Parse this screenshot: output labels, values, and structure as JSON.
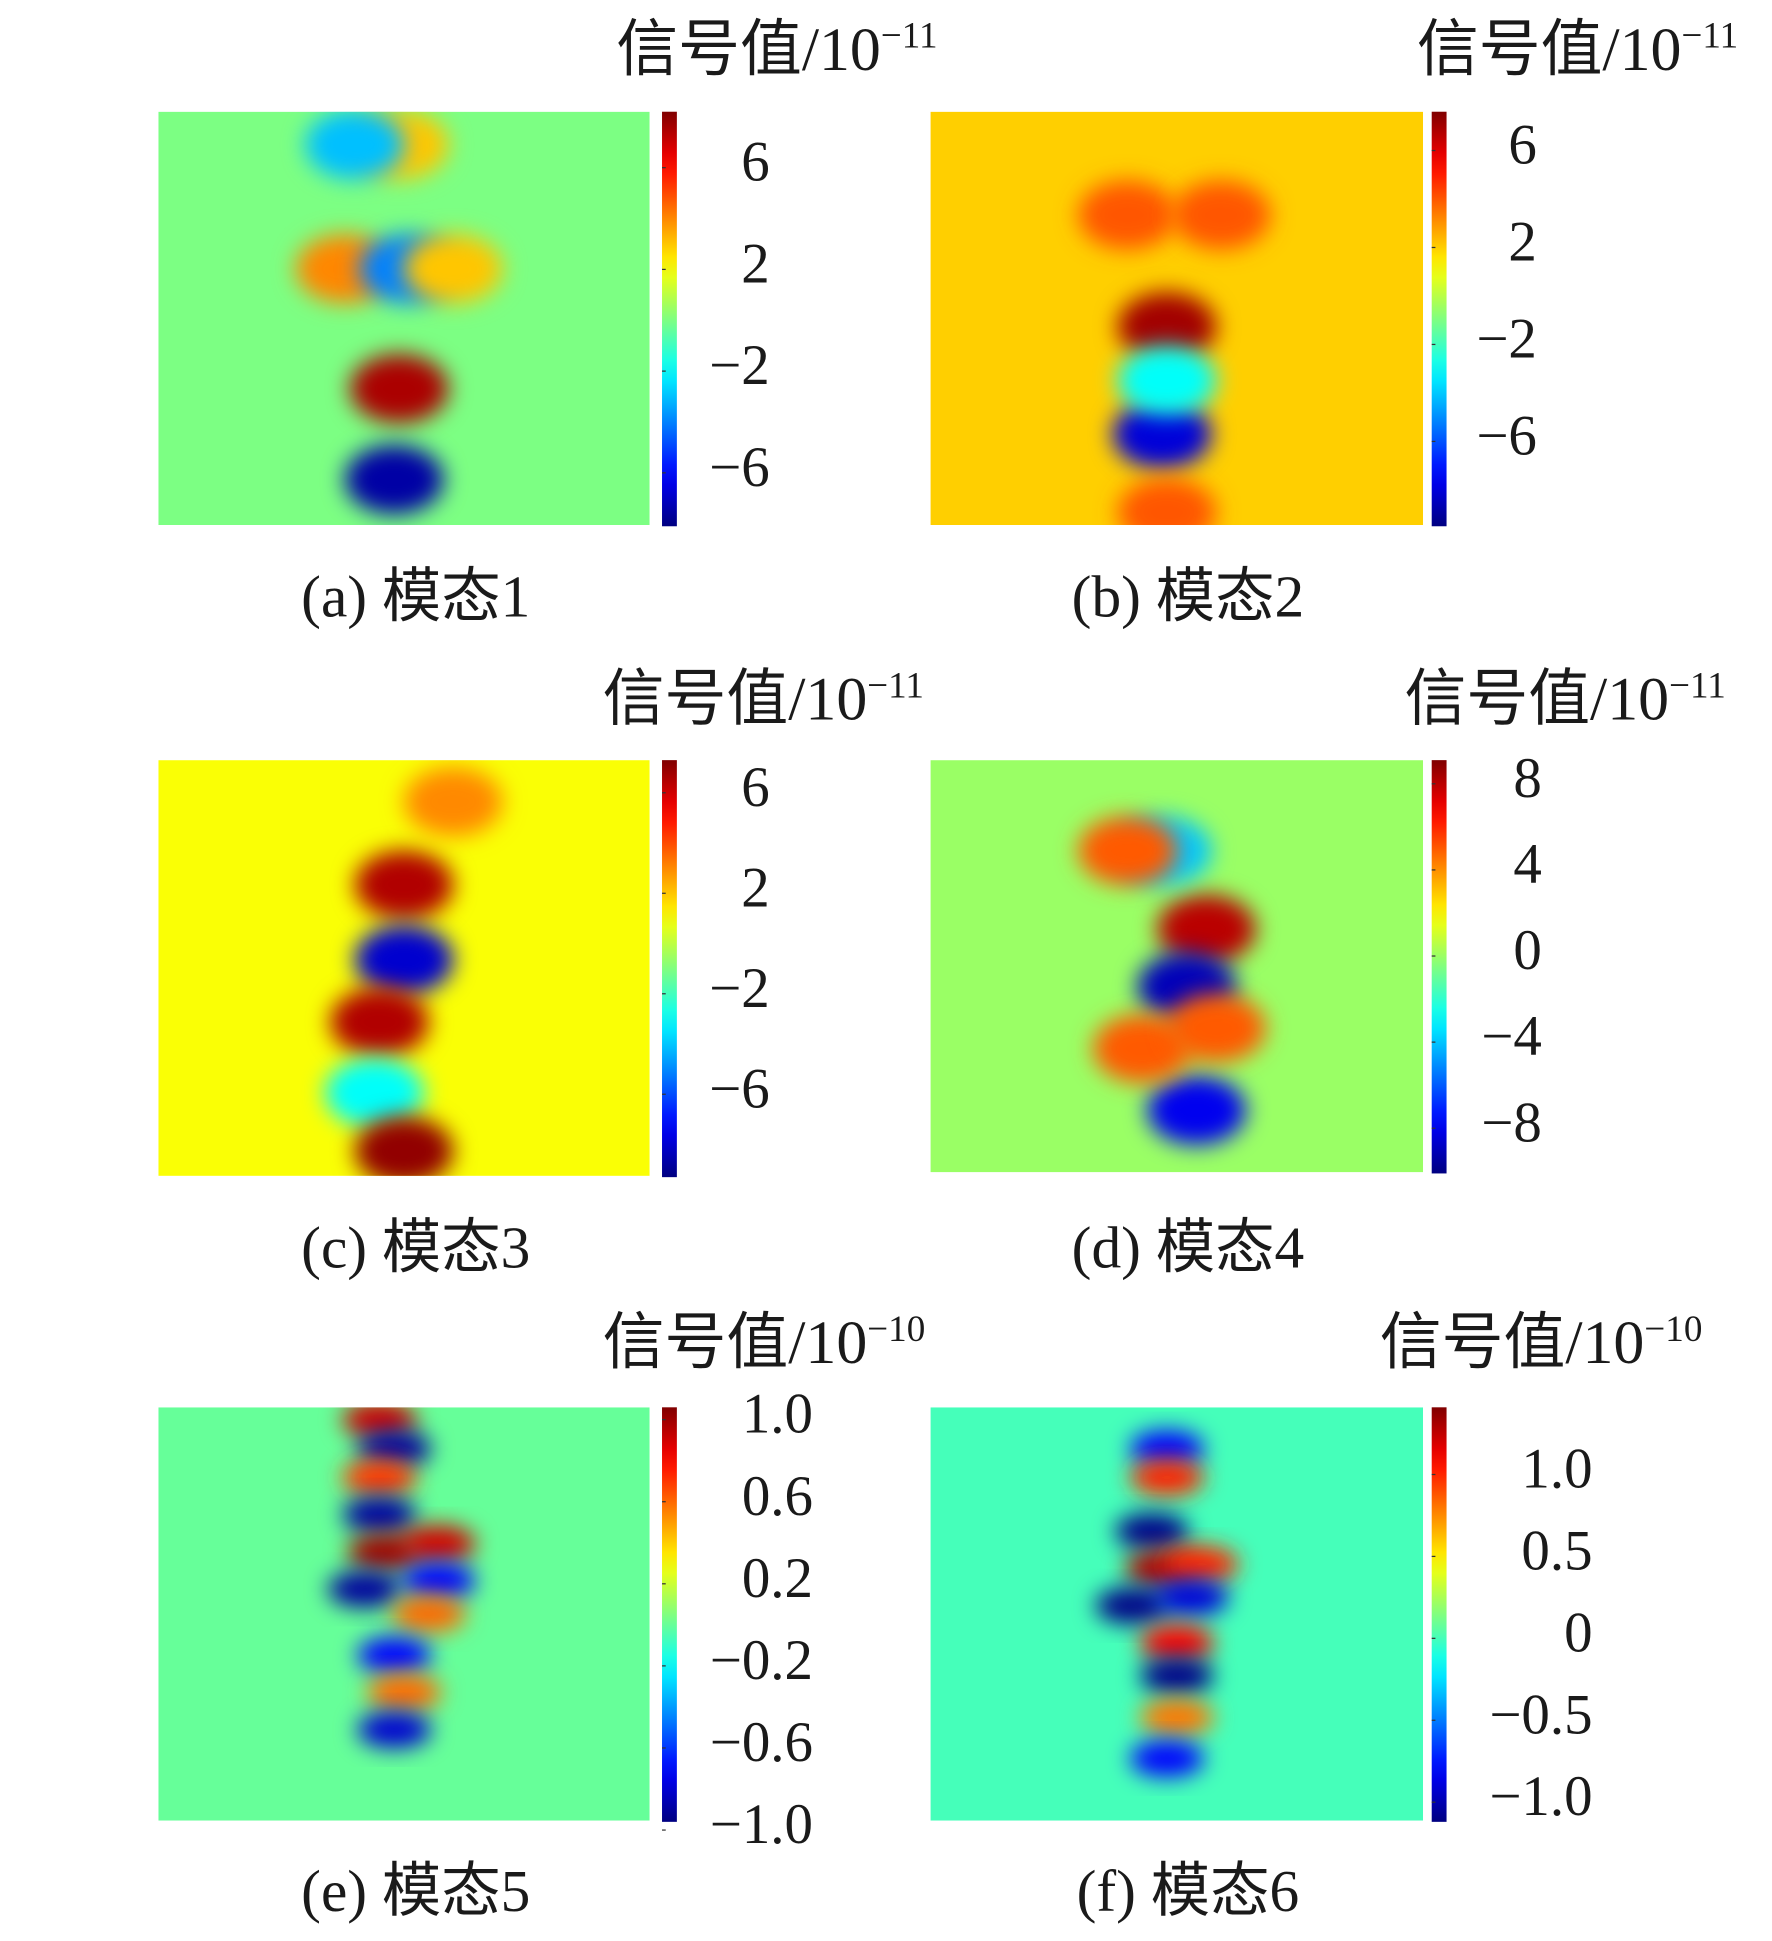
{
  "chart_data": [
    {
      "type": "heatmap",
      "title": "(a) 模态1",
      "colorbar_label": "信号值/10",
      "colorbar_exponent": "−11",
      "xlim": [
        0,
        1
      ],
      "ylim": [
        0,
        1
      ],
      "clim": [
        -8.1,
        8.2
      ],
      "background": 0,
      "cticks": [
        6,
        2,
        {
          "value": -2,
          "label": "−2"
        },
        {
          "value": -6,
          "label": "−6"
        }
      ],
      "spots": [
        {
          "x": 0.49,
          "y": 0.67,
          "value": 7.5
        },
        {
          "x": 0.48,
          "y": 0.89,
          "value": -7.5
        },
        {
          "x": 0.49,
          "y": 0.08,
          "value": 3
        },
        {
          "x": 0.4,
          "y": 0.08,
          "value": -3
        },
        {
          "x": 0.38,
          "y": 0.38,
          "value": 4
        },
        {
          "x": 0.51,
          "y": 0.38,
          "value": -4
        },
        {
          "x": 0.6,
          "y": 0.38,
          "value": 3
        }
      ]
    },
    {
      "type": "heatmap",
      "title": "(b) 模态2",
      "colorbar_label": "信号值/10",
      "colorbar_exponent": "−11",
      "xlim": [
        0,
        1
      ],
      "ylim": [
        0,
        1
      ],
      "clim": [
        -9.5,
        7.6
      ],
      "background": 2,
      "cticks": [
        6,
        2,
        {
          "value": -2,
          "label": "−2"
        },
        {
          "value": -6,
          "label": "−6"
        }
      ],
      "spots": [
        {
          "x": 0.48,
          "y": 0.52,
          "value": 7
        },
        {
          "x": 0.47,
          "y": 0.78,
          "value": -8
        },
        {
          "x": 0.4,
          "y": 0.25,
          "value": 4
        },
        {
          "x": 0.59,
          "y": 0.25,
          "value": 4
        },
        {
          "x": 0.48,
          "y": 0.97,
          "value": 4
        },
        {
          "x": 0.48,
          "y": 0.65,
          "value": -3
        }
      ]
    },
    {
      "type": "heatmap",
      "title": "(c) 模态3",
      "colorbar_label": "信号值/10",
      "colorbar_exponent": "−11",
      "xlim": [
        0,
        1
      ],
      "ylim": [
        0,
        1
      ],
      "clim": [
        -9.3,
        7.3
      ],
      "background": 1,
      "cticks": [
        6,
        2,
        {
          "value": -2,
          "label": "−2"
        },
        {
          "value": -6,
          "label": "−6"
        }
      ],
      "spots": [
        {
          "x": 0.5,
          "y": 0.3,
          "value": 6.5
        },
        {
          "x": 0.5,
          "y": 0.48,
          "value": -8
        },
        {
          "x": 0.45,
          "y": 0.63,
          "value": 6.5
        },
        {
          "x": 0.44,
          "y": 0.8,
          "value": -3
        },
        {
          "x": 0.5,
          "y": 0.94,
          "value": 7
        },
        {
          "x": 0.6,
          "y": 0.1,
          "value": 3
        }
      ]
    },
    {
      "type": "heatmap",
      "title": "(d) 模态4",
      "colorbar_label": "信号值/10",
      "colorbar_exponent": "−11",
      "xlim": [
        0,
        1
      ],
      "ylim": [
        0,
        1
      ],
      "clim": [
        -10.1,
        9.1
      ],
      "background": 0,
      "cticks": [
        8,
        4,
        0,
        {
          "value": -4,
          "label": "−4"
        },
        {
          "value": -8,
          "label": "−8"
        }
      ],
      "spots": [
        {
          "x": 0.56,
          "y": 0.41,
          "value": 8
        },
        {
          "x": 0.52,
          "y": 0.55,
          "value": -9
        },
        {
          "x": 0.47,
          "y": 0.22,
          "value": -4
        },
        {
          "x": 0.4,
          "y": 0.22,
          "value": 5
        },
        {
          "x": 0.54,
          "y": 0.85,
          "value": -8
        },
        {
          "x": 0.43,
          "y": 0.7,
          "value": 5
        },
        {
          "x": 0.58,
          "y": 0.65,
          "value": 5
        }
      ]
    },
    {
      "type": "heatmap",
      "title": "(e) 模态5",
      "colorbar_label": "信号值/10",
      "colorbar_exponent": "−10",
      "xlim": [
        0,
        1
      ],
      "ylim": [
        0,
        1
      ],
      "clim": [
        -0.96,
        1.06
      ],
      "background": 0,
      "cticks": [
        {
          "value": 1.0,
          "label": "1.0"
        },
        0.6,
        0.2,
        {
          "value": -0.2,
          "label": "−0.2"
        },
        {
          "value": -0.6,
          "label": "−0.6"
        },
        {
          "value": -1.0,
          "label": "−1.0"
        }
      ],
      "spots": [
        {
          "x": 0.45,
          "y": 0.03,
          "value": 0.9
        },
        {
          "x": 0.48,
          "y": 0.1,
          "value": -0.9
        },
        {
          "x": 0.45,
          "y": 0.17,
          "value": 0.7
        },
        {
          "x": 0.45,
          "y": 0.26,
          "value": -0.9
        },
        {
          "x": 0.46,
          "y": 0.35,
          "value": 1.0
        },
        {
          "x": 0.57,
          "y": 0.33,
          "value": 0.9
        },
        {
          "x": 0.42,
          "y": 0.44,
          "value": -0.9
        },
        {
          "x": 0.57,
          "y": 0.42,
          "value": -0.7
        },
        {
          "x": 0.55,
          "y": 0.5,
          "value": 0.6
        },
        {
          "x": 0.48,
          "y": 0.6,
          "value": -0.7
        },
        {
          "x": 0.5,
          "y": 0.69,
          "value": 0.6
        },
        {
          "x": 0.48,
          "y": 0.78,
          "value": -0.8
        }
      ]
    },
    {
      "type": "heatmap",
      "title": "(f) 模态6",
      "colorbar_label": "信号值/10",
      "colorbar_exponent": "−10",
      "xlim": [
        0,
        1
      ],
      "ylim": [
        0,
        1
      ],
      "clim": [
        -1.12,
        1.41
      ],
      "background": 0,
      "cticks": [
        {
          "value": 1.0,
          "label": "1.0"
        },
        0.5,
        0,
        {
          "value": -0.5,
          "label": "−0.5"
        },
        {
          "value": -1.0,
          "label": "−1.0"
        }
      ],
      "spots": [
        {
          "x": 0.48,
          "y": 0.1,
          "value": -0.8
        },
        {
          "x": 0.48,
          "y": 0.17,
          "value": 1.0
        },
        {
          "x": 0.45,
          "y": 0.3,
          "value": -1.1
        },
        {
          "x": 0.47,
          "y": 0.39,
          "value": 1.3
        },
        {
          "x": 0.55,
          "y": 0.38,
          "value": 1.0
        },
        {
          "x": 0.41,
          "y": 0.48,
          "value": -1.1
        },
        {
          "x": 0.53,
          "y": 0.46,
          "value": -0.9
        },
        {
          "x": 0.5,
          "y": 0.57,
          "value": 1.1
        },
        {
          "x": 0.5,
          "y": 0.65,
          "value": -1.1
        },
        {
          "x": 0.5,
          "y": 0.75,
          "value": 0.8
        },
        {
          "x": 0.48,
          "y": 0.85,
          "value": -0.8
        }
      ]
    }
  ]
}
